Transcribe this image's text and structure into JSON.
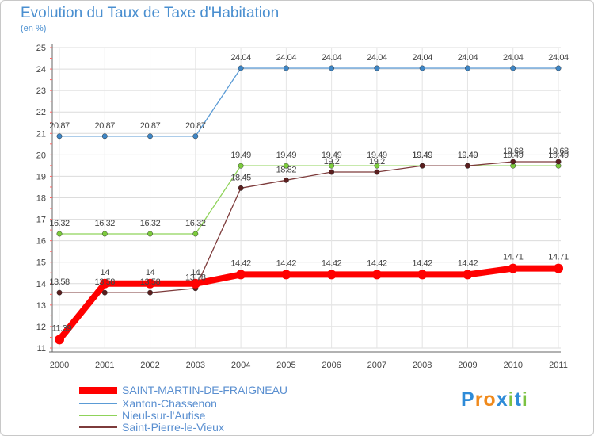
{
  "chart_data": {
    "type": "line",
    "title": "Evolution du Taux de Taxe d'Habitation",
    "subtitle": "(en %)",
    "xlabel": "",
    "ylabel": "",
    "x": [
      "2000",
      "2001",
      "2002",
      "2003",
      "2004",
      "2005",
      "2006",
      "2007",
      "2008",
      "2009",
      "2010",
      "2011"
    ],
    "ylim": [
      11,
      25
    ],
    "yticks": [
      11,
      12,
      13,
      14,
      15,
      16,
      17,
      18,
      19,
      20,
      21,
      22,
      23,
      24,
      25
    ],
    "series": [
      {
        "name": "Xanton-Chassenon",
        "color": "#5b9bd5",
        "point_color": "#3d86c6",
        "values": [
          20.87,
          20.87,
          20.87,
          20.87,
          24.04,
          24.04,
          24.04,
          24.04,
          24.04,
          24.04,
          24.04,
          24.04
        ],
        "labels": [
          "20.87",
          "20.87",
          "20.87",
          "20.87",
          "24.04",
          "24.04",
          "24.04",
          "24.04",
          "24.04",
          "24.04",
          "24.04",
          "24.04"
        ]
      },
      {
        "name": "Nieul-sur-l'Autise",
        "color": "#8fd35a",
        "point_color": "#7ccc3c",
        "values": [
          16.32,
          16.32,
          16.32,
          16.32,
          19.49,
          19.49,
          19.49,
          19.49,
          19.49,
          19.49,
          19.49,
          19.49
        ],
        "labels": [
          "16.32",
          "16.32",
          "16.32",
          "16.32",
          "19.49",
          "19.49",
          "19.49",
          "19.49",
          "19.49",
          "19.49",
          "19.49",
          "19.49"
        ]
      },
      {
        "name": "Saint-Pierre-le-Vieux",
        "color": "#7d3b3b",
        "point_color": "#5a1e1e",
        "values": [
          13.58,
          13.58,
          13.58,
          13.78,
          18.45,
          18.82,
          19.2,
          19.2,
          19.49,
          19.49,
          19.68,
          19.68
        ],
        "labels": [
          "13.58",
          "13.58",
          "13.58",
          "13.78",
          "18.45",
          "18.82",
          "19.2",
          "19.2",
          "19.49",
          "19.49",
          "19.68",
          "19.68"
        ]
      },
      {
        "name": "SAINT-MARTIN-DE-FRAIGNEAU",
        "color": "#ff0000",
        "point_color": "#ff0000",
        "bold": true,
        "values": [
          11.39,
          14,
          14,
          14,
          14.42,
          14.42,
          14.42,
          14.42,
          14.42,
          14.42,
          14.71,
          14.71
        ],
        "labels": [
          "11.39",
          "14",
          "14",
          "14",
          "14.42",
          "14.42",
          "14.42",
          "14.42",
          "14.42",
          "14.42",
          "14.71",
          "14.71"
        ]
      }
    ],
    "legend": [
      {
        "name": "SAINT-MARTIN-DE-FRAIGNEAU",
        "color": "#ff0000",
        "bold": true
      },
      {
        "name": "Xanton-Chassenon",
        "color": "#5b9bd5"
      },
      {
        "name": "Nieul-sur-l'Autise",
        "color": "#8fd35a"
      },
      {
        "name": "Saint-Pierre-le-Vieux",
        "color": "#7d3b3b"
      }
    ]
  },
  "logo": {
    "text": "Proxiti",
    "letters": [
      "P",
      "r",
      "o",
      "x",
      "i",
      "t",
      "i"
    ],
    "colors": [
      "#2e8bd8",
      "#f08a1c",
      "#f08a1c",
      "#2e8bd8",
      "#7cc242",
      "#2e8bd8",
      "#7cc242"
    ]
  }
}
